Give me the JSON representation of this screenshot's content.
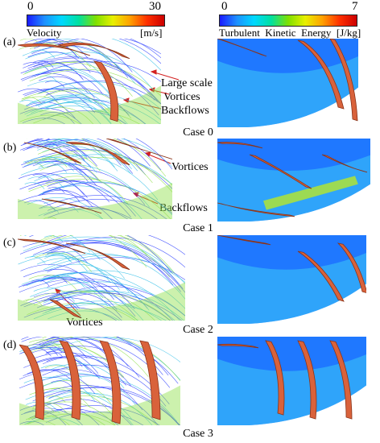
{
  "colorbars": {
    "velocity": {
      "min": "0",
      "max": "30",
      "title": "Velocity",
      "unit": "[m/s]",
      "colors": [
        "#1a1aff",
        "#1e90ff",
        "#00d8ff",
        "#00e0a0",
        "#7fe000",
        "#e8f000",
        "#ffa000",
        "#ff3000",
        "#cc0000"
      ]
    },
    "tke": {
      "min": "0",
      "max": "7",
      "title": "Turbulent  Kinetic  Energy  [J/kg]",
      "colors": [
        "#1a1aff",
        "#1e90ff",
        "#00d8ff",
        "#00e0a0",
        "#7fe000",
        "#e8f000",
        "#ffa000",
        "#ff3000",
        "#cc0000"
      ]
    }
  },
  "panels": [
    {
      "label": "(a)",
      "case": "Case 0",
      "annotations": [
        "Large scale",
        "Vortices",
        "Backflows"
      ]
    },
    {
      "label": "(b)",
      "case": "Case 1",
      "annotations": [
        "Vortices",
        "Backflows"
      ]
    },
    {
      "label": "(c)",
      "case": "Case 2",
      "annotations": [
        "Vortices"
      ]
    },
    {
      "label": "(d)",
      "case": "Case 3",
      "annotations": []
    }
  ],
  "colors": {
    "blade": "#d9623b",
    "blade_edge": "#8a3318",
    "field_blue": "#1f78ff",
    "field_cyan": "#3cc8f5",
    "field_green": "#8fe04a",
    "streamline_blue": "#2a3cff",
    "streamline_cyan": "#36c0e8"
  }
}
